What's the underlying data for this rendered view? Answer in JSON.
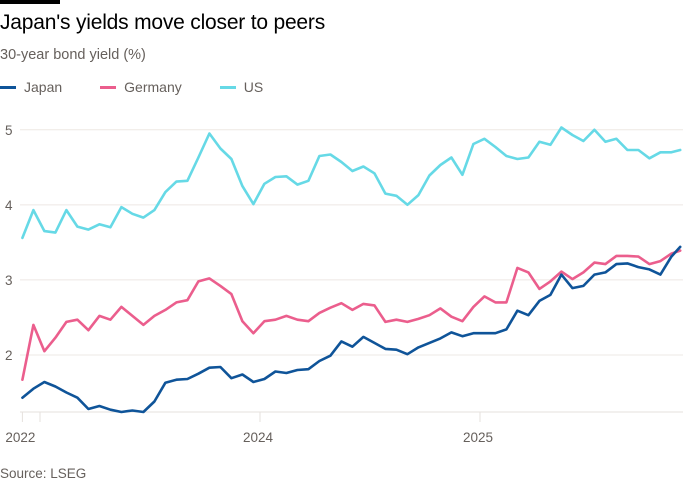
{
  "title": "Japan's yields move closer to peers",
  "subtitle": "30-year bond yield (%)",
  "source": "Source: LSEG",
  "chart_data": {
    "type": "line",
    "title": "Japan's yields move closer to peers",
    "ylabel": "30-year bond yield (%)",
    "xlabel": "",
    "ylim": [
      1.24,
      5.13
    ],
    "xlim": [
      2022.92,
      2025.92
    ],
    "yticks": [
      2,
      3,
      4,
      5
    ],
    "xticks": [
      {
        "value": 2022.92,
        "label": "2022"
      },
      {
        "value": 2023,
        "label": ""
      },
      {
        "value": 2024,
        "label": "2024"
      },
      {
        "value": 2025,
        "label": "2025"
      }
    ],
    "grid": true,
    "legend_position": "top-left",
    "x": [
      2022.92,
      2022.97,
      2023.02,
      2023.07,
      2023.12,
      2023.17,
      2023.22,
      2023.27,
      2023.32,
      2023.37,
      2023.42,
      2023.47,
      2023.52,
      2023.57,
      2023.62,
      2023.67,
      2023.72,
      2023.77,
      2023.82,
      2023.87,
      2023.92,
      2023.97,
      2024.02,
      2024.07,
      2024.12,
      2024.17,
      2024.22,
      2024.27,
      2024.32,
      2024.37,
      2024.42,
      2024.47,
      2024.52,
      2024.57,
      2024.62,
      2024.67,
      2024.72,
      2024.77,
      2024.82,
      2024.87,
      2024.92,
      2024.97,
      2025.02,
      2025.07,
      2025.12,
      2025.17,
      2025.22,
      2025.27,
      2025.32,
      2025.37,
      2025.42,
      2025.47,
      2025.52,
      2025.57,
      2025.62,
      2025.67,
      2025.72,
      2025.77,
      2025.82,
      2025.87,
      2025.91
    ],
    "series": [
      {
        "name": "Japan",
        "color": "#0f5499",
        "values": [
          1.43,
          1.55,
          1.64,
          1.58,
          1.5,
          1.43,
          1.28,
          1.32,
          1.27,
          1.24,
          1.26,
          1.24,
          1.38,
          1.63,
          1.67,
          1.68,
          1.75,
          1.83,
          1.84,
          1.69,
          1.74,
          1.64,
          1.68,
          1.78,
          1.76,
          1.8,
          1.81,
          1.92,
          1.99,
          2.18,
          2.11,
          2.24,
          2.16,
          2.08,
          2.07,
          2.01,
          2.1,
          2.16,
          2.22,
          2.3,
          2.25,
          2.29,
          2.29,
          2.29,
          2.34,
          2.59,
          2.53,
          2.72,
          2.8,
          3.07,
          2.89,
          2.92,
          3.07,
          3.1,
          3.21,
          3.22,
          3.17,
          3.14,
          3.07,
          3.31,
          3.44
        ]
      },
      {
        "name": "Germany",
        "color": "#eb5e8d",
        "values": [
          1.67,
          2.4,
          2.05,
          2.23,
          2.44,
          2.47,
          2.33,
          2.52,
          2.47,
          2.64,
          2.52,
          2.4,
          2.52,
          2.6,
          2.7,
          2.73,
          2.98,
          3.02,
          2.92,
          2.81,
          2.45,
          2.29,
          2.45,
          2.47,
          2.52,
          2.47,
          2.45,
          2.56,
          2.63,
          2.69,
          2.6,
          2.68,
          2.66,
          2.44,
          2.47,
          2.44,
          2.48,
          2.53,
          2.62,
          2.51,
          2.45,
          2.64,
          2.78,
          2.7,
          2.7,
          3.16,
          3.1,
          2.88,
          2.98,
          3.11,
          3.01,
          3.1,
          3.23,
          3.21,
          3.32,
          3.32,
          3.31,
          3.21,
          3.25,
          3.35,
          3.39
        ]
      },
      {
        "name": "US",
        "color": "#66d9e6",
        "values": [
          3.56,
          3.93,
          3.65,
          3.63,
          3.93,
          3.71,
          3.67,
          3.74,
          3.7,
          3.97,
          3.88,
          3.83,
          3.93,
          4.17,
          4.31,
          4.32,
          4.63,
          4.95,
          4.75,
          4.61,
          4.25,
          4.01,
          4.28,
          4.37,
          4.38,
          4.27,
          4.32,
          4.65,
          4.67,
          4.57,
          4.45,
          4.51,
          4.42,
          4.15,
          4.12,
          4.0,
          4.13,
          4.39,
          4.53,
          4.63,
          4.4,
          4.81,
          4.88,
          4.77,
          4.65,
          4.61,
          4.63,
          4.84,
          4.8,
          5.03,
          4.93,
          4.85,
          5.0,
          4.84,
          4.88,
          4.73,
          4.73,
          4.62,
          4.7,
          4.7,
          4.73
        ]
      }
    ]
  }
}
